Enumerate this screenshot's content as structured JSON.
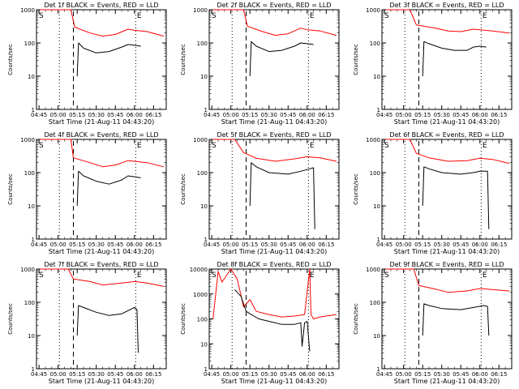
{
  "figure": {
    "start_time_label": "Start Time (21-Aug-11 04:43:20)",
    "ylabel": "Counts/sec",
    "x_ticks": [
      "04:45",
      "05:00",
      "05:15",
      "05:30",
      "05:45",
      "06:00",
      "06:15"
    ],
    "marker_S": "S",
    "marker_E": "E",
    "colors": {
      "events": "#000000",
      "lld": "#ff0000",
      "axes": "#000000"
    }
  },
  "chart_data": [
    {
      "type": "line",
      "detector": "1f",
      "title": "Det 1f BLACK = Events, RED = LLD",
      "xlabel": "Start Time (21-Aug-11 04:43:20)",
      "ylabel": "Counts/sec",
      "x_range": [
        "04:43",
        "06:25"
      ],
      "ylim": [
        1,
        1000
      ],
      "y_scale": "log",
      "y_ticks": [
        "1000",
        "100",
        "10",
        "1"
      ],
      "series": [
        {
          "name": "LLD",
          "color": "#ff0000",
          "x": [
            "04:46",
            "05:10",
            "05:13",
            "05:25",
            "05:35",
            "05:45",
            "05:55",
            "06:00",
            "06:10",
            "06:23"
          ],
          "y": [
            1000,
            1000,
            300,
            200,
            160,
            180,
            260,
            240,
            220,
            160
          ]
        },
        {
          "name": "Events",
          "color": "#000000",
          "x": [
            "05:15",
            "05:16",
            "05:20",
            "05:30",
            "05:40",
            "05:50",
            "05:55",
            "06:00",
            "06:05"
          ],
          "y": [
            10,
            100,
            70,
            50,
            55,
            75,
            90,
            85,
            80
          ]
        }
      ]
    },
    {
      "type": "line",
      "detector": "2f",
      "title": "Det 2f BLACK = Events, RED = LLD",
      "xlabel": "Start Time (21-Aug-11 04:43:20)",
      "ylabel": "Counts/sec",
      "x_range": [
        "04:43",
        "06:25"
      ],
      "ylim": [
        1,
        1000
      ],
      "y_scale": "log",
      "y_ticks": [
        "1000",
        "100",
        "10",
        "1"
      ],
      "series": [
        {
          "name": "LLD",
          "color": "#ff0000",
          "x": [
            "04:46",
            "05:10",
            "05:13",
            "05:25",
            "05:35",
            "05:45",
            "05:55",
            "06:00",
            "06:10",
            "06:23"
          ],
          "y": [
            1000,
            1000,
            320,
            220,
            170,
            190,
            280,
            250,
            230,
            170
          ]
        },
        {
          "name": "Events",
          "color": "#000000",
          "x": [
            "05:15",
            "05:16",
            "05:20",
            "05:30",
            "05:40",
            "05:50",
            "05:55",
            "06:00",
            "06:05"
          ],
          "y": [
            10,
            110,
            80,
            55,
            60,
            80,
            100,
            95,
            90
          ]
        }
      ]
    },
    {
      "type": "line",
      "detector": "3f",
      "title": "Det 3f BLACK = Events, RED = LLD",
      "xlabel": "Start Time (21-Aug-11 04:43:20)",
      "ylabel": "Counts/sec",
      "x_range": [
        "04:43",
        "06:25"
      ],
      "ylim": [
        1,
        1000
      ],
      "y_scale": "log",
      "y_ticks": [
        "1000",
        "100",
        "10",
        "1"
      ],
      "series": [
        {
          "name": "LLD",
          "color": "#ff0000",
          "x": [
            "04:46",
            "05:05",
            "05:10",
            "05:25",
            "05:35",
            "05:45",
            "05:55",
            "06:00",
            "06:10",
            "06:23"
          ],
          "y": [
            1000,
            1000,
            350,
            280,
            230,
            220,
            260,
            250,
            230,
            200
          ]
        },
        {
          "name": "Events",
          "color": "#000000",
          "x": [
            "05:15",
            "05:16",
            "05:20",
            "05:30",
            "05:40",
            "05:50",
            "05:55",
            "06:00",
            "06:05"
          ],
          "y": [
            10,
            110,
            95,
            70,
            60,
            60,
            75,
            80,
            75
          ]
        }
      ]
    },
    {
      "type": "line",
      "detector": "4f",
      "title": "Det 4f BLACK = Events, RED = LLD",
      "xlabel": "Start Time (21-Aug-11 04:43:20)",
      "ylabel": "Counts/sec",
      "x_range": [
        "04:43",
        "06:25"
      ],
      "ylim": [
        1,
        1000
      ],
      "y_scale": "log",
      "y_ticks": [
        "1000",
        "100",
        "10",
        "1"
      ],
      "series": [
        {
          "name": "LLD",
          "color": "#ff0000",
          "x": [
            "04:46",
            "05:10",
            "05:12",
            "05:25",
            "05:35",
            "05:45",
            "05:55",
            "06:00",
            "06:10",
            "06:23"
          ],
          "y": [
            1000,
            1000,
            280,
            200,
            150,
            170,
            230,
            220,
            200,
            150
          ]
        },
        {
          "name": "Events",
          "color": "#000000",
          "x": [
            "05:15",
            "05:16",
            "05:20",
            "05:30",
            "05:40",
            "05:50",
            "05:55",
            "06:00",
            "06:05"
          ],
          "y": [
            10,
            110,
            80,
            55,
            45,
            60,
            80,
            75,
            70
          ]
        }
      ]
    },
    {
      "type": "line",
      "detector": "5f",
      "title": "Det 5f BLACK = Events, RED = LLD",
      "xlabel": "Start Time (21-Aug-11 04:43:20)",
      "ylabel": "Counts/sec",
      "x_range": [
        "04:43",
        "06:25"
      ],
      "ylim": [
        1,
        1000
      ],
      "y_scale": "log",
      "y_ticks": [
        "1000",
        "100",
        "10",
        "1"
      ],
      "series": [
        {
          "name": "LLD",
          "color": "#ff0000",
          "x": [
            "04:46",
            "05:03",
            "05:10",
            "05:20",
            "05:35",
            "05:50",
            "06:00",
            "06:10",
            "06:23"
          ],
          "y": [
            1000,
            1000,
            400,
            270,
            220,
            260,
            300,
            280,
            220
          ]
        },
        {
          "name": "Events",
          "color": "#000000",
          "x": [
            "05:15",
            "05:16",
            "05:20",
            "05:30",
            "05:45",
            "05:55",
            "06:02",
            "06:05",
            "06:06"
          ],
          "y": [
            10,
            200,
            150,
            100,
            90,
            110,
            130,
            140,
            2
          ]
        }
      ]
    },
    {
      "type": "line",
      "detector": "6f",
      "title": "Det 6f BLACK = Events, RED = LLD",
      "xlabel": "Start Time (21-Aug-11 04:43:20)",
      "ylabel": "Counts/sec",
      "x_range": [
        "04:43",
        "06:25"
      ],
      "ylim": [
        1,
        1000
      ],
      "y_scale": "log",
      "y_ticks": [
        "1000",
        "100",
        "10",
        "1"
      ],
      "series": [
        {
          "name": "LLD",
          "color": "#ff0000",
          "x": [
            "04:46",
            "05:05",
            "05:10",
            "05:20",
            "05:35",
            "05:50",
            "06:00",
            "06:10",
            "06:23"
          ],
          "y": [
            1000,
            1000,
            380,
            280,
            220,
            230,
            270,
            250,
            190
          ]
        },
        {
          "name": "Events",
          "color": "#000000",
          "x": [
            "05:15",
            "05:16",
            "05:20",
            "05:30",
            "05:45",
            "05:55",
            "06:00",
            "06:06",
            "06:07"
          ],
          "y": [
            10,
            150,
            130,
            100,
            90,
            100,
            110,
            110,
            2
          ]
        }
      ]
    },
    {
      "type": "line",
      "detector": "7f",
      "title": "Det 7f BLACK = Events, RED = LLD",
      "xlabel": "Start Time (21-Aug-11 04:43:20)",
      "ylabel": "Counts/sec",
      "x_range": [
        "04:43",
        "06:25"
      ],
      "ylim": [
        1,
        1000
      ],
      "y_scale": "log",
      "y_ticks": [
        "1000",
        "100",
        "10",
        "1"
      ],
      "series": [
        {
          "name": "LLD",
          "color": "#ff0000",
          "x": [
            "04:46",
            "05:08",
            "05:12",
            "05:25",
            "05:35",
            "05:50",
            "06:00",
            "06:10",
            "06:23"
          ],
          "y": [
            1000,
            1000,
            500,
            420,
            330,
            380,
            420,
            380,
            300
          ]
        },
        {
          "name": "Events",
          "color": "#000000",
          "x": [
            "05:15",
            "05:16",
            "05:20",
            "05:30",
            "05:40",
            "05:50",
            "06:00",
            "06:02",
            "06:03"
          ],
          "y": [
            10,
            80,
            70,
            50,
            40,
            45,
            70,
            60,
            3
          ]
        }
      ]
    },
    {
      "type": "line",
      "detector": "8f",
      "title": "Det 8f BLACK = Events, RED = LLD",
      "xlabel": "Start Time (21-Aug-11 04:43:20)",
      "ylabel": "Counts/sec",
      "x_range": [
        "04:43",
        "06:25"
      ],
      "ylim": [
        1,
        10000
      ],
      "y_scale": "log",
      "y_ticks": [
        "10000",
        "1000",
        "100",
        "10",
        "1"
      ],
      "series": [
        {
          "name": "LLD",
          "color": "#ff0000",
          "x": [
            "04:46",
            "04:50",
            "04:53",
            "05:00",
            "05:05",
            "05:10",
            "05:15",
            "05:20",
            "05:30",
            "05:40",
            "05:50",
            "05:58",
            "06:02",
            "06:03",
            "06:05",
            "06:10",
            "06:23"
          ],
          "y": [
            100,
            8000,
            3000,
            10000,
            4000,
            300,
            600,
            200,
            150,
            120,
            130,
            150,
            10000,
            150,
            100,
            120,
            150
          ]
        },
        {
          "name": "Events",
          "color": "#000000",
          "x": [
            "05:03",
            "05:08",
            "05:12",
            "05:16",
            "05:22",
            "05:30",
            "05:40",
            "05:50",
            "05:55",
            "05:56",
            "05:58",
            "06:00",
            "06:02"
          ],
          "y": [
            1500,
            800,
            200,
            150,
            100,
            80,
            60,
            60,
            70,
            8,
            70,
            80,
            5
          ]
        }
      ]
    },
    {
      "type": "line",
      "detector": "9f",
      "title": "Det 9f BLACK = Events, RED = LLD",
      "xlabel": "Start Time (21-Aug-11 04:43:20)",
      "ylabel": "Counts/sec",
      "x_range": [
        "04:43",
        "06:25"
      ],
      "ylim": [
        1,
        1000
      ],
      "y_scale": "log",
      "y_ticks": [
        "1000",
        "100",
        "10",
        "1"
      ],
      "series": [
        {
          "name": "LLD",
          "color": "#ff0000",
          "x": [
            "04:46",
            "05:08",
            "05:12",
            "05:25",
            "05:35",
            "05:50",
            "06:00",
            "06:10",
            "06:23"
          ],
          "y": [
            1000,
            1000,
            320,
            250,
            200,
            220,
            260,
            240,
            220
          ]
        },
        {
          "name": "Events",
          "color": "#000000",
          "x": [
            "05:15",
            "05:16",
            "05:20",
            "05:30",
            "05:45",
            "05:55",
            "06:03",
            "06:06",
            "06:07"
          ],
          "y": [
            10,
            90,
            80,
            65,
            60,
            70,
            80,
            75,
            10
          ]
        }
      ]
    }
  ]
}
